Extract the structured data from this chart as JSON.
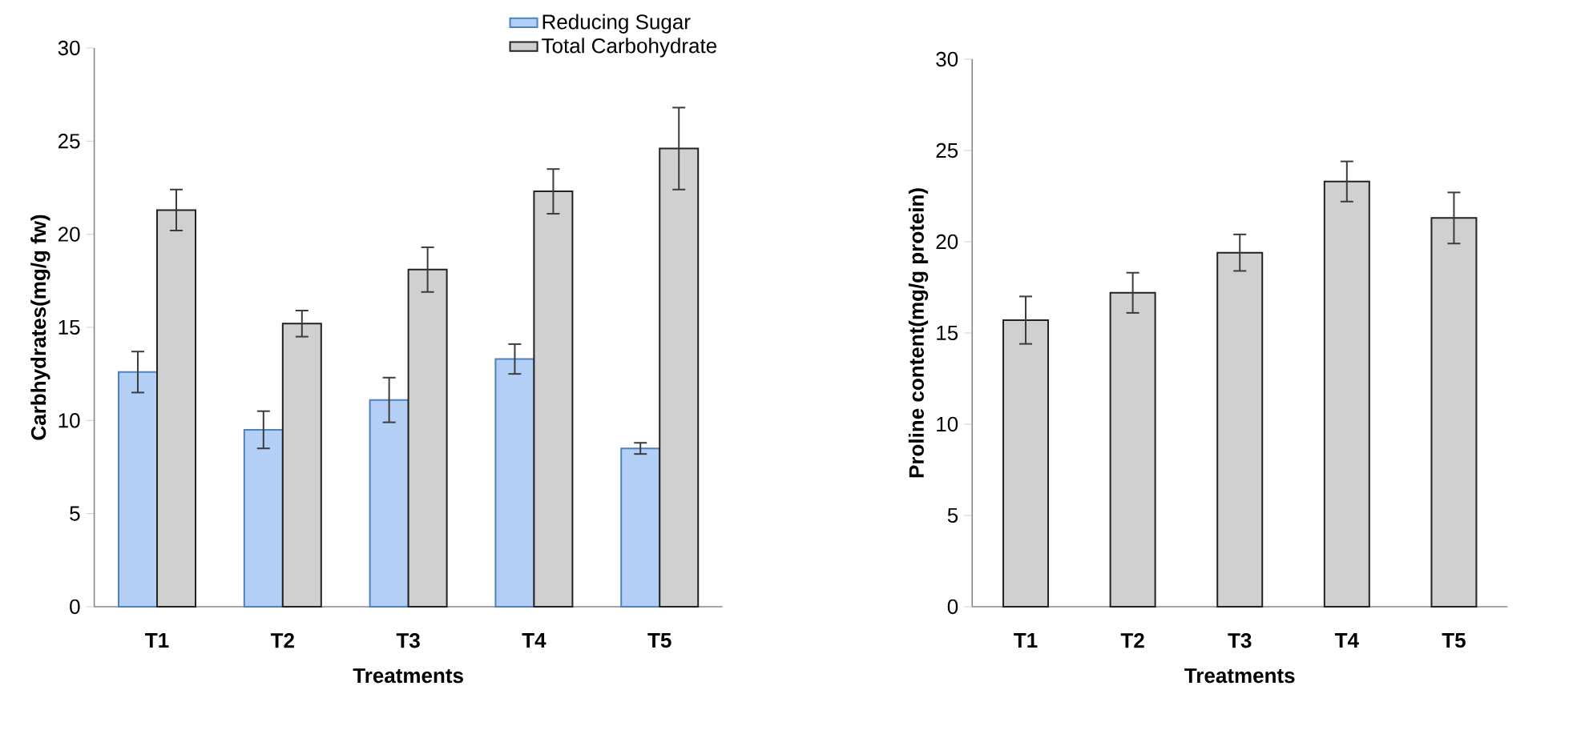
{
  "chart_data": [
    {
      "type": "bar",
      "categories": [
        "T1",
        "T2",
        "T3",
        "T4",
        "T5"
      ],
      "xlabel": "Treatments",
      "ylabel": "Carbhydrates(mg/g fw)",
      "ylim": [
        0,
        30
      ],
      "yticks": [
        0,
        5,
        10,
        15,
        20,
        25,
        30
      ],
      "legend": "top right",
      "series": [
        {
          "name": "Reducing Sugar",
          "color": "#b4cff5",
          "values": [
            12.6,
            9.5,
            11.1,
            13.3,
            8.5
          ],
          "errors": [
            1.1,
            1.0,
            1.2,
            0.8,
            0.3
          ]
        },
        {
          "name": "Total Carbohydrate",
          "color": "#d0d0d0",
          "values": [
            21.3,
            15.2,
            18.1,
            22.3,
            24.6
          ],
          "errors": [
            1.1,
            0.7,
            1.2,
            1.2,
            2.2
          ]
        }
      ]
    },
    {
      "type": "bar",
      "categories": [
        "T1",
        "T2",
        "T3",
        "T4",
        "T5"
      ],
      "xlabel": "Treatments",
      "ylabel": "Proline content(mg/g protein)",
      "ylim": [
        0,
        30
      ],
      "yticks": [
        0,
        5,
        10,
        15,
        20,
        25,
        30
      ],
      "series": [
        {
          "color": "#d0d0d0",
          "values": [
            15.7,
            17.2,
            19.4,
            23.3,
            21.3
          ],
          "errors": [
            1.3,
            1.1,
            1.0,
            1.1,
            1.4
          ]
        }
      ]
    }
  ]
}
